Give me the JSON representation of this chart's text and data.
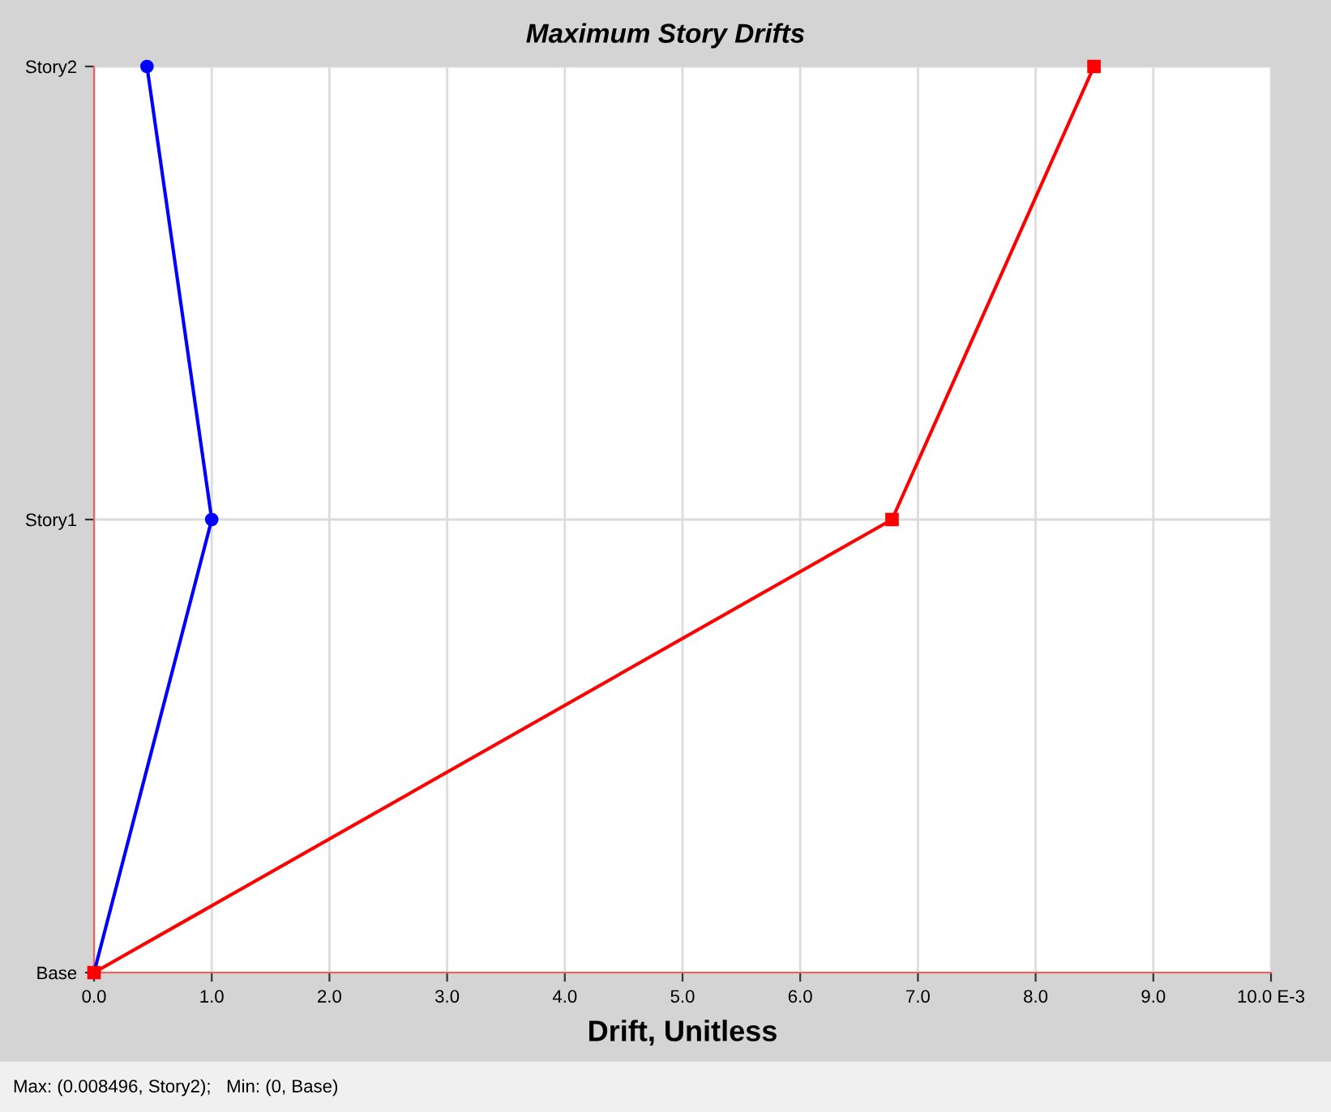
{
  "chart_data": {
    "type": "line",
    "title": "Maximum Story Drifts",
    "xlabel": "Drift, Unitless",
    "orientation": "horizontal",
    "categories": [
      "Story2",
      "Story1",
      "Base"
    ],
    "series": [
      {
        "color": "#0000ff",
        "marker": "circle",
        "values": [
          0.45,
          1.0,
          0.0
        ]
      },
      {
        "color": "#ff0000",
        "marker": "square",
        "values": [
          8.496,
          6.78,
          0.0
        ]
      }
    ],
    "xlim": [
      0,
      10
    ],
    "xticks": [
      {
        "value": 0,
        "label": "0.0"
      },
      {
        "value": 1,
        "label": "1.0"
      },
      {
        "value": 2,
        "label": "2.0"
      },
      {
        "value": 3,
        "label": "3.0"
      },
      {
        "value": 4,
        "label": "4.0"
      },
      {
        "value": 5,
        "label": "5.0"
      },
      {
        "value": 6,
        "label": "6.0"
      },
      {
        "value": 7,
        "label": "7.0"
      },
      {
        "value": 8,
        "label": "8.0"
      },
      {
        "value": 9,
        "label": "9.0"
      },
      {
        "value": 10,
        "label": "10.0 E-3"
      }
    ],
    "grid": true,
    "annotations": [
      "Max: (0.008496, Story2);   Min: (0, Base)"
    ]
  }
}
